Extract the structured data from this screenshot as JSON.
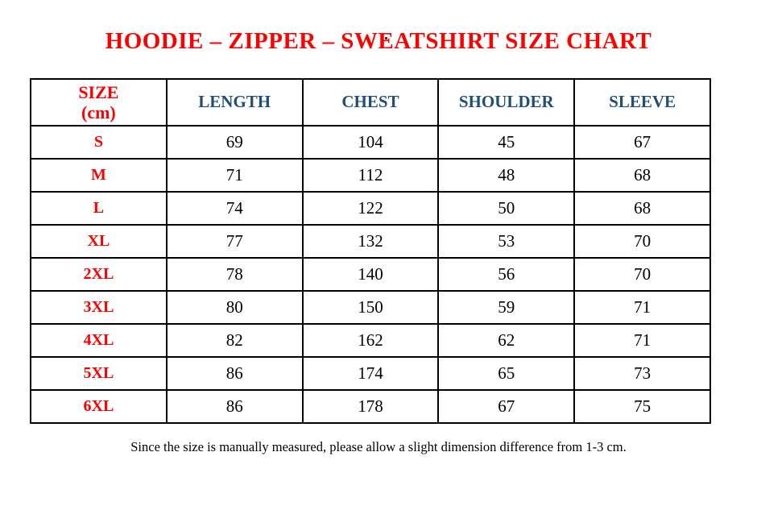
{
  "page": {
    "dot": ".",
    "title": "HOODIE – ZIPPER – SWEATSHIRT SIZE CHART",
    "footnote": "Since the size is manually measured, please allow a slight dimension difference from 1-3 cm."
  },
  "colors": {
    "title_red": "#ff0000",
    "header_blue": "#1f4e79",
    "body_text": "#000000",
    "border": "#000000",
    "background": "#ffffff"
  },
  "table": {
    "size_header": {
      "line1": "SIZE",
      "line2": "(cm)"
    },
    "columns": [
      "LENGTH",
      "CHEST",
      "SHOULDER",
      "SLEEVE"
    ],
    "rows": [
      {
        "size": "S",
        "values": [
          69,
          104,
          45,
          67
        ]
      },
      {
        "size": "M",
        "values": [
          71,
          112,
          48,
          68
        ]
      },
      {
        "size": "L",
        "values": [
          74,
          122,
          50,
          68
        ]
      },
      {
        "size": "XL",
        "values": [
          77,
          132,
          53,
          70
        ]
      },
      {
        "size": "2XL",
        "values": [
          78,
          140,
          56,
          70
        ]
      },
      {
        "size": "3XL",
        "values": [
          80,
          150,
          59,
          71
        ]
      },
      {
        "size": "4XL",
        "values": [
          82,
          162,
          62,
          71
        ]
      },
      {
        "size": "5XL",
        "values": [
          86,
          174,
          65,
          73
        ]
      },
      {
        "size": "6XL",
        "values": [
          86,
          178,
          67,
          75
        ]
      }
    ]
  }
}
